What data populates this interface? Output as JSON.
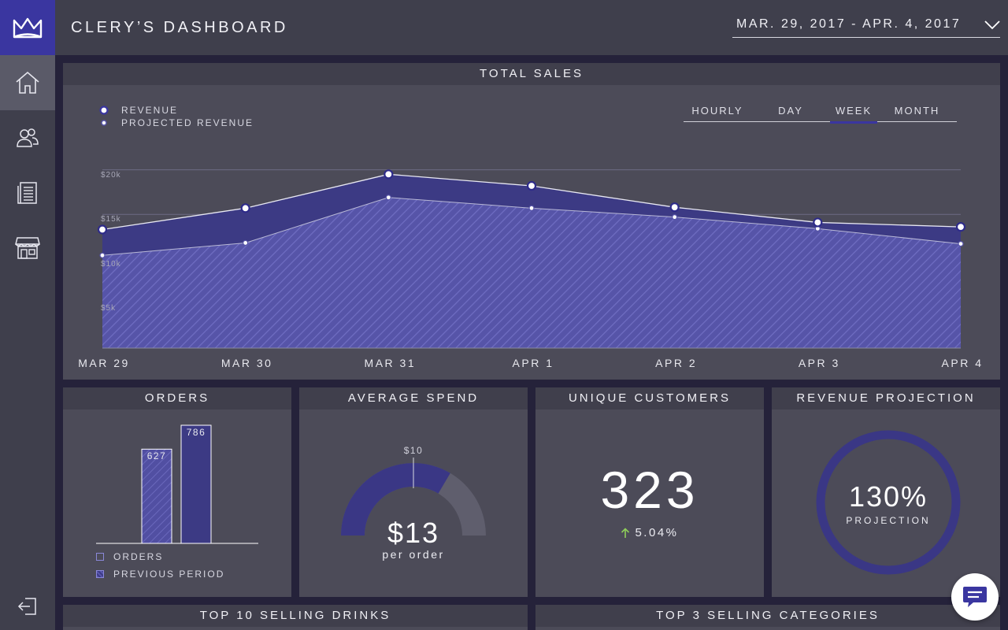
{
  "header": {
    "title": "CLERY’S DASHBOARD",
    "date_range": "MAR. 29, 2017 - APR. 4, 2017"
  },
  "sidebar": {
    "logo_icon": "crown-logo-icon",
    "items": [
      {
        "name": "home",
        "icon": "home-icon",
        "active": true
      },
      {
        "name": "customers",
        "icon": "users-icon",
        "active": false
      },
      {
        "name": "reports",
        "icon": "document-list-icon",
        "active": false
      },
      {
        "name": "store",
        "icon": "storefront-icon",
        "active": false
      }
    ],
    "logout_icon": "logout-icon"
  },
  "total_sales": {
    "title": "TOTAL SALES",
    "legend": {
      "revenue": "REVENUE",
      "projected": "PROJECTED REVENUE"
    },
    "tabs": [
      "HOURLY",
      "DAY",
      "WEEK",
      "MONTH"
    ],
    "active_tab": "WEEK"
  },
  "chart_data": {
    "type": "area",
    "x": [
      "MAR 29",
      "MAR 30",
      "MAR 31",
      "APR 1",
      "APR 2",
      "APR 3",
      "APR 4"
    ],
    "ytick_labels": [
      "$20k",
      "$15k",
      "$10k",
      "$5k"
    ],
    "ytick_values": [
      20000,
      15000,
      10000,
      5000
    ],
    "ylim": [
      0,
      20500
    ],
    "grid": true,
    "legend_position": "top-left",
    "series": [
      {
        "name": "REVENUE",
        "values": [
          13300,
          15700,
          19500,
          18200,
          15800,
          14100,
          13600
        ],
        "color": "#3c3a84"
      },
      {
        "name": "PROJECTED REVENUE",
        "values": [
          10400,
          11800,
          16900,
          15700,
          14700,
          13400,
          11700
        ],
        "color": "#5654a8"
      }
    ]
  },
  "orders": {
    "title": "ORDERS",
    "legend_orders": "ORDERS",
    "legend_previous": "PREVIOUS PERIOD",
    "previous_value": 627,
    "previous_label": "627",
    "current_value": 786,
    "current_label": "786"
  },
  "average_spend": {
    "title": "AVERAGE SPEND",
    "value": "$13",
    "sub": "per order",
    "target": "$10",
    "gauge_fraction": 0.67
  },
  "unique_customers": {
    "title": "UNIQUE CUSTOMERS",
    "value": "323",
    "change": "5.04%"
  },
  "revenue_projection": {
    "title": "REVENUE PROJECTION",
    "value": "130%",
    "label": "PROJECTION"
  },
  "bottom": {
    "drinks_title": "TOP 10 SELLING DRINKS",
    "categories_title": "TOP 3 SELLING CATEGORIES"
  },
  "colors": {
    "accent": "#3a36a0",
    "revenue_fill": "#3c3a84",
    "projected_fill": "#5654a8",
    "up_arrow": "#8fcf5a"
  },
  "chat": {
    "icon": "chat-bubble-icon"
  }
}
